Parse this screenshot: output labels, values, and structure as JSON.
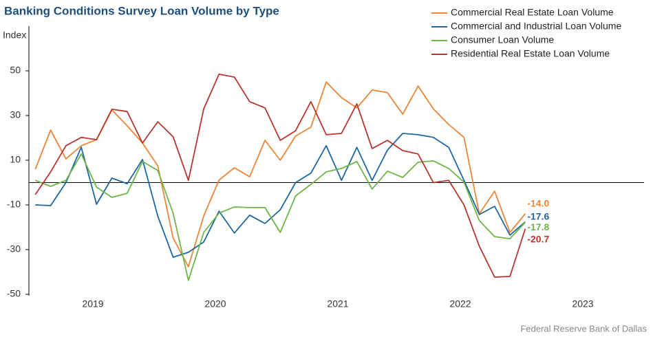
{
  "chart_data": {
    "type": "line",
    "title": "Banking Conditions Survey Loan Volume by Type",
    "y_label": "Index",
    "source": "Federal Reserve Bank of Dallas",
    "x": [
      2019.03,
      2019.155,
      2019.28,
      2019.405,
      2019.53,
      2019.655,
      2019.78,
      2019.905,
      2020.03,
      2020.155,
      2020.28,
      2020.405,
      2020.53,
      2020.655,
      2020.78,
      2020.905,
      2021.03,
      2021.155,
      2021.28,
      2021.405,
      2021.53,
      2021.655,
      2021.78,
      2021.905,
      2022.03,
      2022.155,
      2022.28,
      2022.405,
      2022.53,
      2022.655,
      2022.78,
      2022.905,
      2023.03
    ],
    "xlim": [
      2019,
      2024
    ],
    "xticks": [
      {
        "value": 2019.5,
        "label": "2019"
      },
      {
        "value": 2020.5,
        "label": "2020"
      },
      {
        "value": 2021.5,
        "label": "2021"
      },
      {
        "value": 2022.5,
        "label": "2022"
      },
      {
        "value": 2023.5,
        "label": "2023"
      }
    ],
    "ylim": [
      -50,
      70
    ],
    "yticks": [
      50,
      30,
      10,
      -10,
      -30,
      -50
    ],
    "legend": "top-right",
    "series": [
      {
        "name": "Commercial Real Estate Loan Volume",
        "color": "#ee8434",
        "values": [
          6,
          23.5,
          10.6,
          16.5,
          19.2,
          32.5,
          25.4,
          17.7,
          7.5,
          -24.8,
          -37.7,
          -14.9,
          1.1,
          6.6,
          2.6,
          18.9,
          10,
          20.8,
          24.8,
          45,
          38,
          33.4,
          41.4,
          40.2,
          30.6,
          43.2,
          33,
          26,
          20.2,
          -14,
          -3.8,
          -22.3,
          -14.0
        ],
        "value_labels": [
          null,
          null,
          null,
          null,
          null,
          null,
          null,
          null,
          null,
          null,
          null,
          null,
          null,
          null,
          null,
          null,
          null,
          null,
          null,
          null,
          null,
          null,
          null,
          null,
          null,
          null,
          null,
          null,
          null,
          null,
          null,
          null,
          "-14.0"
        ]
      },
      {
        "name": "Commercial and Industrial Loan Volume",
        "color": "#1c65a3",
        "values": [
          -10,
          -10.3,
          0,
          15.8,
          -9.7,
          2,
          -0.5,
          10.3,
          -15,
          -33.4,
          -31.2,
          -26.6,
          -12.8,
          -22.6,
          -14.6,
          -18.3,
          -12.2,
          0,
          4.2,
          16.5,
          1,
          15.8,
          1,
          14.6,
          22,
          21.4,
          20.2,
          15.8,
          1,
          -14.3,
          -10.6,
          -23.5,
          -17.6
        ],
        "value_labels": [
          null,
          null,
          null,
          null,
          null,
          null,
          null,
          null,
          null,
          null,
          null,
          null,
          null,
          null,
          null,
          null,
          null,
          null,
          null,
          null,
          null,
          null,
          null,
          null,
          null,
          null,
          null,
          null,
          null,
          null,
          null,
          null,
          "-17.6"
        ]
      },
      {
        "name": "Consumer Loan Volume",
        "color": "#6cb547",
        "values": [
          1,
          -1.7,
          1,
          12.8,
          -2,
          -6.6,
          -4.8,
          9.4,
          5.4,
          -13.7,
          -43.8,
          -22.3,
          -13.7,
          -10.9,
          -11.2,
          -11.2,
          -22.3,
          -6,
          -0.8,
          4.8,
          6.3,
          9.4,
          -2.9,
          5.1,
          2.3,
          9.1,
          9.7,
          6.3,
          0.2,
          -17,
          -24.2,
          -25.1,
          -17.8
        ],
        "value_labels": [
          null,
          null,
          null,
          null,
          null,
          null,
          null,
          null,
          null,
          null,
          null,
          null,
          null,
          null,
          null,
          null,
          null,
          null,
          null,
          null,
          null,
          null,
          null,
          null,
          null,
          null,
          null,
          null,
          null,
          null,
          null,
          null,
          "-17.8"
        ]
      },
      {
        "name": "Residential Real Estate Loan Volume",
        "color": "#b8342c",
        "values": [
          -5.4,
          4.8,
          16.5,
          20.2,
          19.2,
          32.8,
          31.8,
          17.7,
          27.2,
          20.5,
          1,
          33,
          48.5,
          47.2,
          36.2,
          33.4,
          18.9,
          23.2,
          36.2,
          21.4,
          22,
          35.2,
          15.2,
          18.9,
          14.3,
          12.8,
          0,
          1,
          -10,
          -28.5,
          -42.3,
          -42,
          -20.7
        ],
        "value_labels": [
          null,
          null,
          null,
          null,
          null,
          null,
          null,
          null,
          null,
          null,
          null,
          null,
          null,
          null,
          null,
          null,
          null,
          null,
          null,
          null,
          null,
          null,
          null,
          null,
          null,
          null,
          null,
          null,
          null,
          null,
          null,
          null,
          "-20.7"
        ]
      }
    ]
  }
}
